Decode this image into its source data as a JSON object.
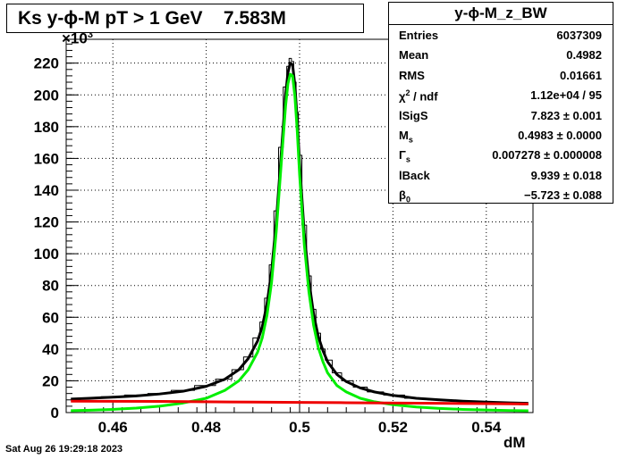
{
  "title": "Ks y-ϕ-M pT > 1 GeV    7.583M",
  "timestamp": "Sat Aug 26 19:29:18 2023",
  "stats": {
    "name": "y-ϕ-M_z_BW",
    "rows": [
      {
        "label": "Entries",
        "sup": "",
        "sub": "",
        "rest": "",
        "value": "6037309"
      },
      {
        "label": "Mean",
        "sup": "",
        "sub": "",
        "rest": "",
        "value": "0.4982"
      },
      {
        "label": "RMS",
        "sup": "",
        "sub": "",
        "rest": "",
        "value": "0.01661"
      },
      {
        "label": "χ",
        "sup": "2",
        "sub": "",
        "rest": " / ndf",
        "value": "1.12e+04 / 95"
      },
      {
        "label": "lSigS",
        "sup": "",
        "sub": "",
        "rest": "",
        "value": "7.823 ± 0.001"
      },
      {
        "label": "M",
        "sup": "",
        "sub": "s",
        "rest": "",
        "value": "0.4983 ± 0.0000"
      },
      {
        "label": "Γ",
        "sup": "",
        "sub": "s",
        "rest": "",
        "value": "0.007278 ± 0.000008"
      },
      {
        "label": "lBack",
        "sup": "",
        "sub": "",
        "rest": "",
        "value": "9.939 ± 0.018"
      },
      {
        "label": "β",
        "sup": "",
        "sub": "0",
        "rest": "",
        "value": "−5.723 ± 0.088"
      }
    ]
  },
  "chart_data": {
    "type": "line",
    "xlabel": "dM",
    "ylabel": "",
    "y_multiplier_label": "×10",
    "y_multiplier_exp": "3",
    "xlim": [
      0.45,
      0.55
    ],
    "ylim": [
      0,
      235
    ],
    "xticks": [
      0.46,
      0.48,
      0.5,
      0.52,
      0.54
    ],
    "xtick_labels": [
      "0.46",
      "0.48",
      "0.5",
      "0.52",
      "0.54"
    ],
    "yticks": [
      0,
      20,
      40,
      60,
      80,
      100,
      120,
      140,
      160,
      180,
      200,
      220
    ],
    "ytick_labels": [
      "0",
      "20",
      "40",
      "60",
      "80",
      "100",
      "120",
      "140",
      "160",
      "180",
      "200",
      "220"
    ],
    "grid": true,
    "fit_params": {
      "mass": 0.4983,
      "width": 0.007278
    },
    "series": [
      {
        "name": "",
        "color": "#000000",
        "kind": "histogram",
        "x": [
          0.451,
          0.455,
          0.46,
          0.465,
          0.47,
          0.475,
          0.48,
          0.484,
          0.487,
          0.489,
          0.491,
          0.492,
          0.493,
          0.494,
          0.495,
          0.496,
          0.497,
          0.4975,
          0.498,
          0.4985,
          0.499,
          0.4995,
          0.5,
          0.501,
          0.502,
          0.503,
          0.504,
          0.505,
          0.506,
          0.508,
          0.51,
          0.513,
          0.516,
          0.52,
          0.525,
          0.53,
          0.535,
          0.54,
          0.545,
          0.549
        ],
        "y": [
          8,
          9,
          10,
          11,
          12,
          14,
          17,
          21,
          27,
          35,
          47,
          57,
          72,
          93,
          127,
          167,
          205,
          218,
          223,
          221,
          208,
          189,
          162,
          118,
          86,
          65,
          50,
          40,
          33,
          25,
          20,
          16,
          13,
          11,
          9,
          8,
          7,
          6,
          6,
          5
        ]
      },
      {
        "name": "",
        "color": "#000000",
        "kind": "fit-total",
        "x": [
          0.451,
          0.455,
          0.46,
          0.465,
          0.47,
          0.475,
          0.48,
          0.484,
          0.487,
          0.489,
          0.491,
          0.492,
          0.493,
          0.494,
          0.495,
          0.496,
          0.497,
          0.4975,
          0.498,
          0.4985,
          0.499,
          0.4995,
          0.5,
          0.501,
          0.502,
          0.503,
          0.504,
          0.505,
          0.506,
          0.508,
          0.51,
          0.513,
          0.516,
          0.52,
          0.525,
          0.53,
          0.535,
          0.54,
          0.545,
          0.549
        ],
        "y": [
          8.5,
          9,
          9.7,
          10.5,
          11.7,
          13.4,
          16.5,
          21,
          27,
          34,
          45,
          54,
          68,
          89,
          120,
          160,
          200,
          214,
          220,
          219,
          206,
          184,
          157,
          113,
          83,
          62,
          48,
          39,
          32,
          24,
          19.5,
          15.5,
          13,
          10.8,
          9,
          8,
          7.2,
          6.6,
          6.1,
          5.8
        ]
      },
      {
        "name": "",
        "color": "#00ee00",
        "kind": "fit-signal",
        "x": [
          0.451,
          0.455,
          0.46,
          0.465,
          0.47,
          0.475,
          0.48,
          0.484,
          0.487,
          0.489,
          0.491,
          0.492,
          0.493,
          0.494,
          0.495,
          0.496,
          0.497,
          0.4975,
          0.498,
          0.4985,
          0.499,
          0.4995,
          0.5,
          0.501,
          0.502,
          0.503,
          0.504,
          0.505,
          0.506,
          0.508,
          0.51,
          0.513,
          0.516,
          0.52,
          0.525,
          0.53,
          0.535,
          0.54,
          0.545,
          0.549
        ],
        "y": [
          1.2,
          1.5,
          2,
          2.8,
          4,
          6,
          9,
          14,
          20,
          27,
          38,
          47,
          61,
          82,
          114,
          154,
          193,
          207,
          213,
          212,
          199,
          177,
          150,
          106,
          76,
          55,
          41,
          32,
          25,
          17,
          13,
          9,
          6.8,
          5,
          3.5,
          2.6,
          2,
          1.6,
          1.3,
          1.1
        ]
      },
      {
        "name": "",
        "color": "#ee0000",
        "kind": "fit-background",
        "x": [
          0.451,
          0.47,
          0.49,
          0.5,
          0.51,
          0.53,
          0.549
        ],
        "y": [
          7.2,
          7.0,
          6.6,
          6.4,
          6.2,
          5.8,
          5.4
        ]
      }
    ]
  }
}
